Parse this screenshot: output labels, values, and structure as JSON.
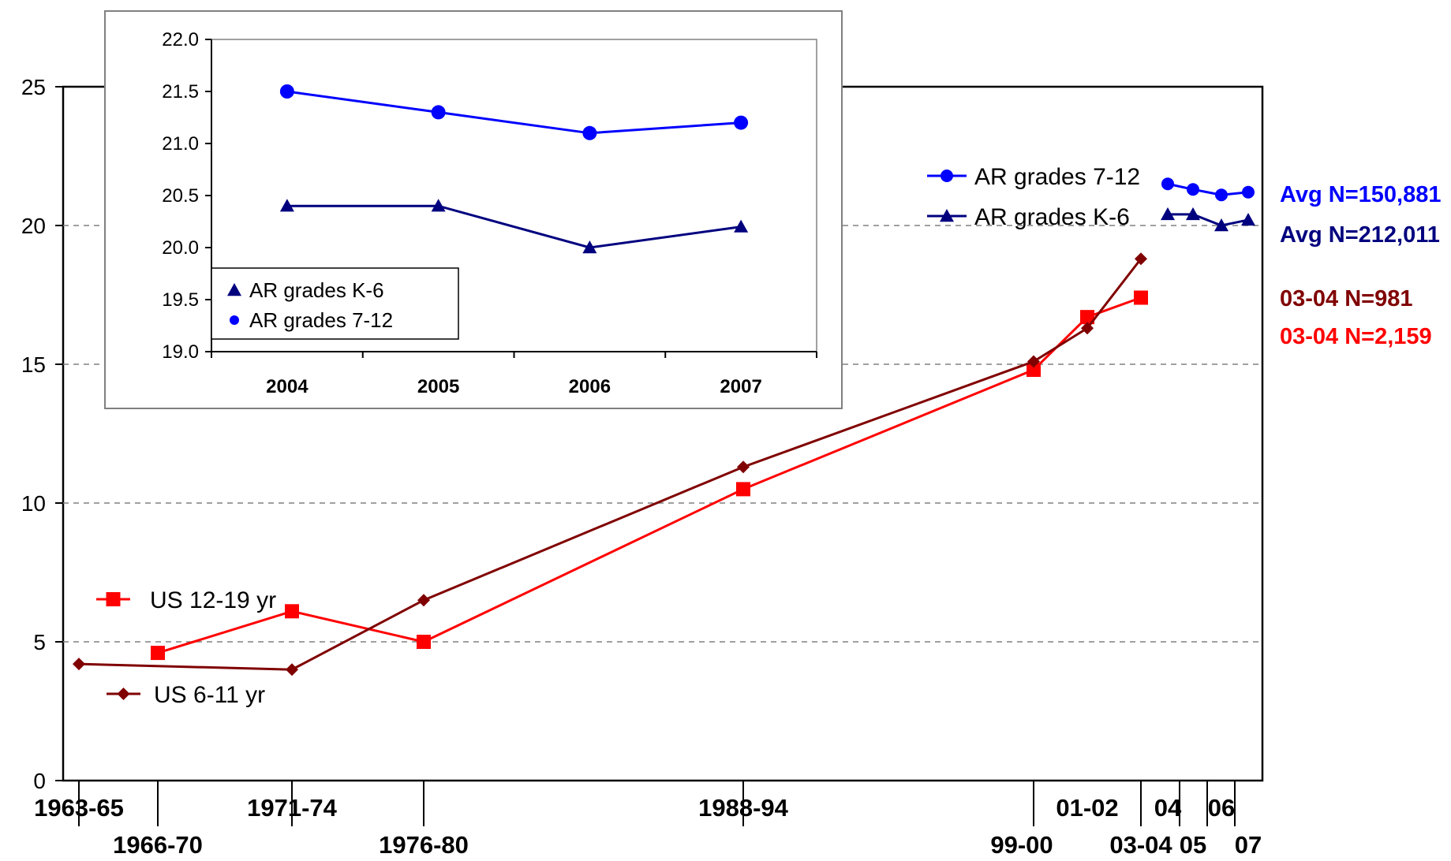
{
  "colors": {
    "us_12_19": "#ff0000",
    "us_6_11": "#800000",
    "ar_7_12": "#0000ff",
    "ar_k_6": "#00007f"
  },
  "chart_data": [
    {
      "type": "line",
      "title": "",
      "ylim": [
        0,
        25
      ],
      "y_ticks": [
        "0",
        "5",
        "10",
        "15",
        "20",
        "25"
      ],
      "grid": "dashed horizontal",
      "x_labels_row1": [
        "1963-65",
        "1971-74",
        "1988-94",
        "01-02",
        "04",
        "06"
      ],
      "x_labels_row2": [
        "1966-70",
        "1976-80",
        "99-00",
        "03-04",
        "05",
        "07"
      ],
      "series": [
        {
          "name": "US 12-19 yr",
          "color": "#ff0000",
          "marker": "square",
          "x": [
            "1966-70",
            "1971-74",
            "1976-80",
            "1988-94",
            "99-00",
            "01-02",
            "03-04"
          ],
          "values": [
            4.6,
            6.1,
            5.0,
            10.5,
            14.8,
            16.7,
            17.4
          ]
        },
        {
          "name": "US 6-11 yr",
          "color": "#800000",
          "marker": "diamond",
          "x": [
            "1963-65",
            "1971-74",
            "1976-80",
            "1988-94",
            "99-00",
            "01-02",
            "03-04"
          ],
          "values": [
            4.2,
            4.0,
            6.5,
            11.3,
            15.1,
            16.3,
            18.8
          ]
        },
        {
          "name": "AR grades 7-12",
          "color": "#0000ff",
          "marker": "circle",
          "x": [
            "04",
            "05",
            "06",
            "07"
          ],
          "values": [
            21.5,
            21.3,
            21.1,
            21.2
          ]
        },
        {
          "name": "AR grades K-6",
          "color": "#00007f",
          "marker": "triangle",
          "x": [
            "04",
            "05",
            "06",
            "07"
          ],
          "values": [
            20.4,
            20.4,
            20.0,
            20.2
          ]
        }
      ],
      "annotations": [
        {
          "text": "Avg N=150,881",
          "color": "#0000ff"
        },
        {
          "text": "Avg N=212,011",
          "color": "#00007f"
        },
        {
          "text": "03-04 N=981",
          "color": "#800000"
        },
        {
          "text": "03-04 N=2,159",
          "color": "#ff0000"
        }
      ]
    },
    {
      "type": "line",
      "title": "",
      "categories": [
        "2004",
        "2005",
        "2006",
        "2007"
      ],
      "ylim": [
        19.0,
        22.0
      ],
      "y_ticks": [
        "19.0",
        "19.5",
        "20.0",
        "20.5",
        "21.0",
        "21.5",
        "22.0"
      ],
      "legend_position": "bottom-left",
      "series": [
        {
          "name": "AR grades K-6",
          "color": "#00007f",
          "marker": "triangle",
          "values": [
            20.4,
            20.4,
            20.0,
            20.2
          ]
        },
        {
          "name": "AR grades 7-12",
          "color": "#0000ff",
          "marker": "circle",
          "values": [
            21.5,
            21.3,
            21.1,
            21.2
          ]
        }
      ]
    }
  ]
}
